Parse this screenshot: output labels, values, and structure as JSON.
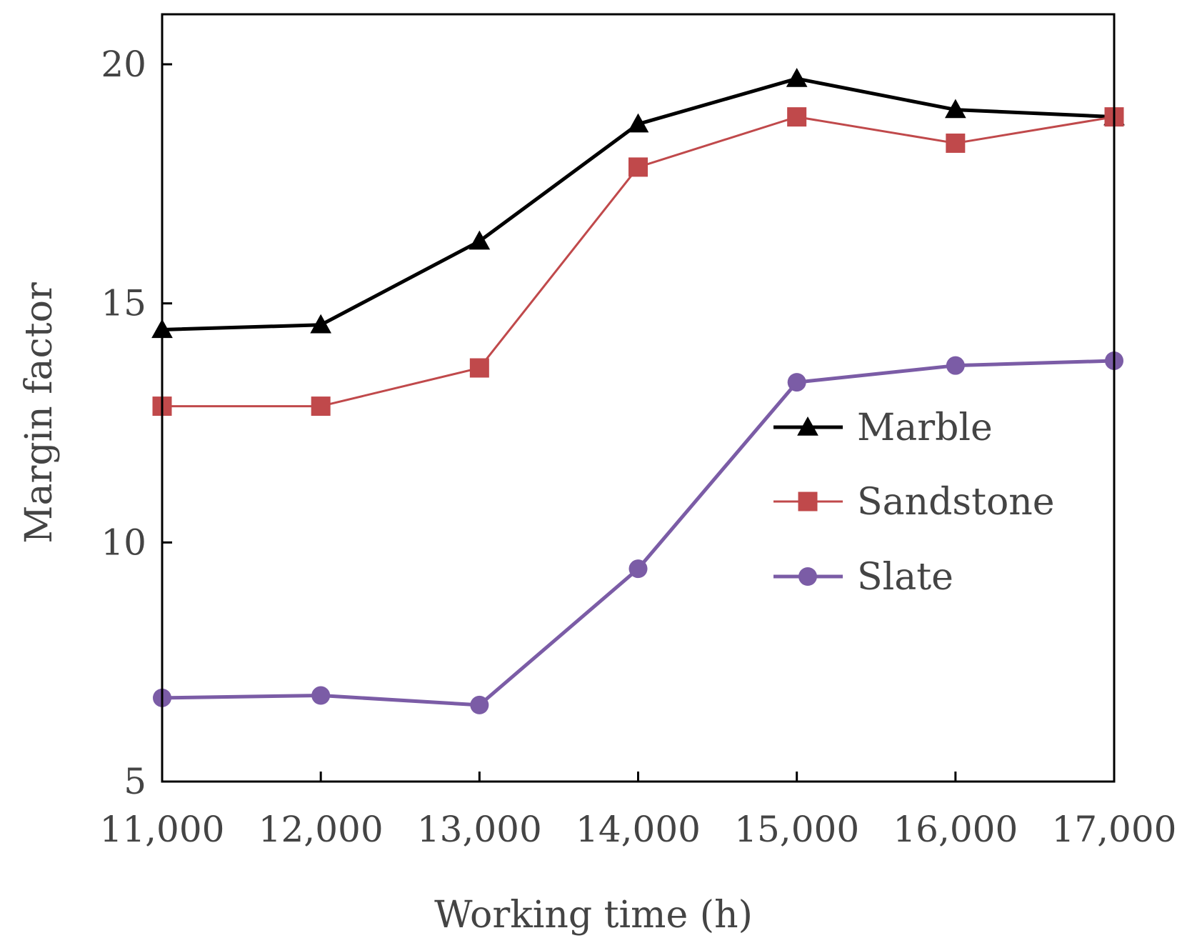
{
  "chart_data": {
    "type": "line",
    "title": "",
    "xlabel": "Working time (h)",
    "ylabel": "Margin factor",
    "x": [
      11000,
      12000,
      13000,
      14000,
      15000,
      16000,
      17000
    ],
    "x_tick_labels": [
      "11,000",
      "12,000",
      "13,000",
      "14,000",
      "15,000",
      "16,000",
      "17,000"
    ],
    "xlim": [
      11000,
      17000
    ],
    "ylim": [
      5,
      21
    ],
    "y_ticks": [
      5,
      10,
      15,
      20
    ],
    "y_tick_labels": [
      "5",
      "10",
      "15",
      "20"
    ],
    "grid": false,
    "legend_position": "middle-right",
    "series": [
      {
        "name": "Marble",
        "marker": "triangle",
        "color": "#000000",
        "values": [
          14.45,
          14.55,
          16.3,
          18.75,
          19.7,
          19.05,
          18.9
        ]
      },
      {
        "name": "Sandstone",
        "marker": "square",
        "color": "#c0494b",
        "values": [
          12.85,
          12.85,
          13.65,
          17.85,
          18.9,
          18.35,
          18.9
        ]
      },
      {
        "name": "Slate",
        "marker": "circle",
        "color": "#7b5ca6",
        "values": [
          6.75,
          6.8,
          6.6,
          9.45,
          13.35,
          13.7,
          13.8
        ]
      }
    ]
  }
}
